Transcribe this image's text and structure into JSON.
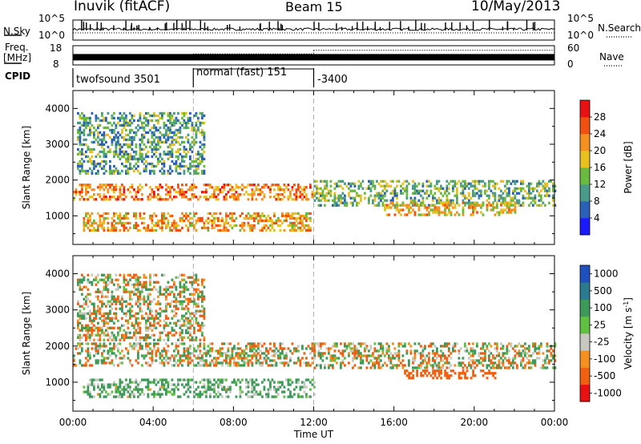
{
  "header": {
    "station": "Inuvik (fitACF)",
    "beam": "Beam 15",
    "date": "10/May/2013"
  },
  "sky_panel": {
    "left_label": "N.Sky",
    "right_label": "N.Search",
    "left_ticks": [
      "10^5",
      "10^0"
    ],
    "right_ticks": [
      "10^5",
      "10^0"
    ]
  },
  "freq_panel": {
    "left_label_1": "Freq.",
    "left_label_2": "[MHz]",
    "right_label": "Nave",
    "left_ticks": [
      "18",
      "8"
    ],
    "right_ticks": [
      "60",
      "0"
    ],
    "freq_mhz": 12,
    "nave_segments": [
      {
        "start": "00:00",
        "end": "06:00",
        "nave": 24
      },
      {
        "start": "06:00",
        "end": "12:00",
        "nave": 34
      },
      {
        "start": "12:00",
        "end": "24:00",
        "nave": 46
      }
    ]
  },
  "cpid": {
    "label": "CPID",
    "segments": [
      {
        "label": "twofsound 3501",
        "start": "00:00",
        "end": "06:00"
      },
      {
        "label": "normal (fast) 151",
        "start": "06:00",
        "end": "12:00"
      },
      {
        "label": "-3400",
        "start": "12:00",
        "end": "24:00"
      }
    ]
  },
  "chart_data": [
    {
      "type": "heatmap",
      "title": "",
      "xlabel": "Time UT",
      "ylabel": "Slant Range [km]",
      "xlim": [
        "00:00",
        "24:00"
      ],
      "ylim": [
        200,
        4500
      ],
      "xticks": [
        "00:00",
        "04:00",
        "08:00",
        "12:00",
        "16:00",
        "20:00",
        "00:00"
      ],
      "yticks": [
        1000,
        2000,
        3000,
        4000
      ],
      "colorbar": {
        "label": "Power [dB]",
        "ticks": [
          "4",
          "8",
          "12",
          "16",
          "20",
          "24",
          "28"
        ],
        "colors": [
          "#1a1aff",
          "#2a60b8",
          "#4a9a8a",
          "#6aba40",
          "#e8c020",
          "#f49020",
          "#f05010",
          "#e81010"
        ]
      },
      "bands": [
        {
          "t0": 0.0,
          "t1": 12.0,
          "range_km": [
            1450,
            1900
          ],
          "power_db": 25
        },
        {
          "t0": 0.5,
          "t1": 11.8,
          "range_km": [
            600,
            1100
          ],
          "power_db": 23
        },
        {
          "t0": 0.2,
          "t1": 6.5,
          "range_km": [
            2200,
            3900
          ],
          "power_db": 13
        },
        {
          "t0": 12.0,
          "t1": 24.0,
          "range_km": [
            1300,
            2000
          ],
          "power_db": 15
        },
        {
          "t0": 15.5,
          "t1": 22.0,
          "range_km": [
            1000,
            1400
          ],
          "power_db": 21
        }
      ]
    },
    {
      "type": "heatmap",
      "title": "",
      "xlabel": "Time UT",
      "ylabel": "Slant Range [km]",
      "xlim": [
        "00:00",
        "24:00"
      ],
      "ylim": [
        200,
        4500
      ],
      "xticks": [
        "00:00",
        "04:00",
        "08:00",
        "12:00",
        "16:00",
        "20:00",
        "00:00"
      ],
      "yticks": [
        1000,
        2000,
        3000,
        4000
      ],
      "colorbar": {
        "label": "Velocity [m s-1]",
        "label_main": "Velocity [m s",
        "label_sup": "-1",
        "label_end": "]",
        "ticks": [
          "1000",
          "500",
          "100",
          "25",
          "-25",
          "-100",
          "-500",
          "-1000"
        ],
        "colors": [
          "#2050c0",
          "#2a7a90",
          "#3d9a5a",
          "#60c040",
          "#c8c8c0",
          "#f49020",
          "#f06010",
          "#e81010"
        ]
      },
      "bands": [
        {
          "t0": 0.0,
          "t1": 12.0,
          "range_km": [
            1500,
            2100
          ],
          "velocity_ms": 0
        },
        {
          "t0": 0.5,
          "t1": 12.0,
          "range_km": [
            600,
            1100
          ],
          "velocity_ms": 120
        },
        {
          "t0": 0.2,
          "t1": 6.5,
          "range_km": [
            2200,
            4000
          ],
          "velocity_ms": 0
        },
        {
          "t0": 12.0,
          "t1": 24.0,
          "range_km": [
            1400,
            2100
          ],
          "velocity_ms": 0
        },
        {
          "t0": 16.5,
          "t1": 21.0,
          "range_km": [
            1100,
            1350
          ],
          "velocity_ms": -300
        }
      ]
    }
  ]
}
